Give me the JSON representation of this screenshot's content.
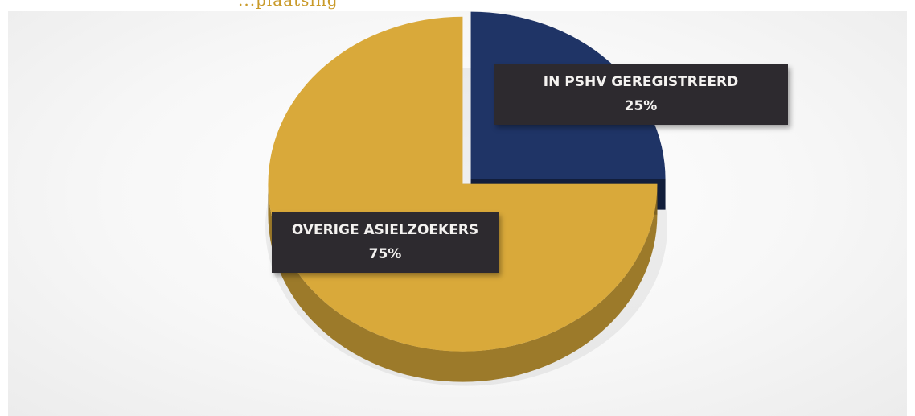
{
  "header": {
    "partial_text": "...plaatsing"
  },
  "chart_data": {
    "type": "pie",
    "title": "",
    "slices": [
      {
        "label": "IN PSHV GEREGISTREERD",
        "value": 25,
        "display": "25%",
        "color": "#1f3466"
      },
      {
        "label": "OVERIGE ASIELZOEKERS",
        "value": 75,
        "display": "75%",
        "color": "#d9a93a"
      }
    ],
    "style": "3d-exploded",
    "legend": "none"
  }
}
